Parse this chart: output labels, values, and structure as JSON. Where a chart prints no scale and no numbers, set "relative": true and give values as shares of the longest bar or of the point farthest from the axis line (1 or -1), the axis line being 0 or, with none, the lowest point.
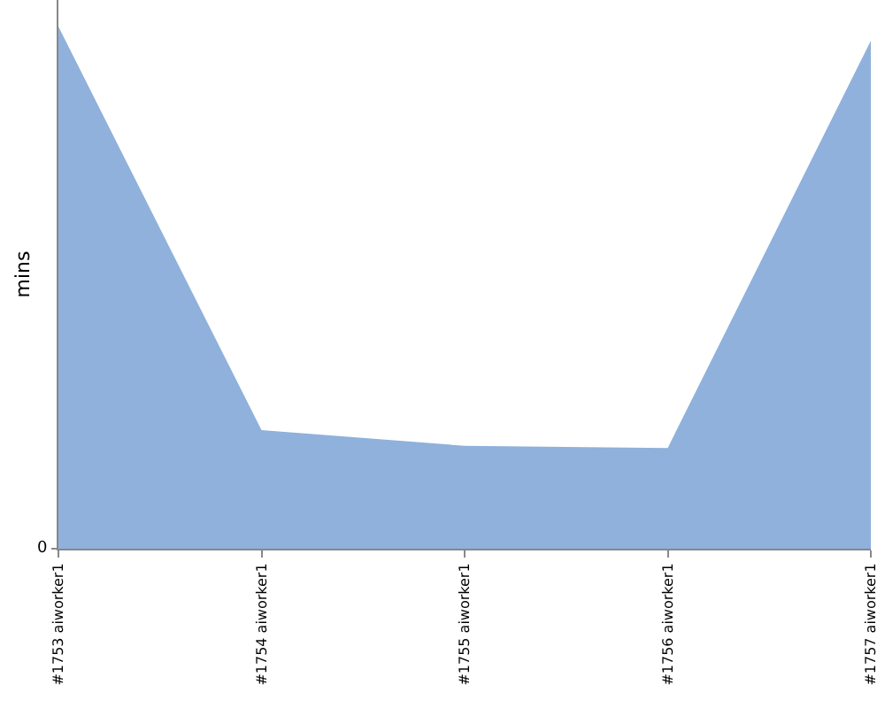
{
  "chart_data": {
    "type": "area",
    "relative": true,
    "ylabel": "mins",
    "categories": [
      "#1753 aiworker1",
      "#1754 aiworker1",
      "#1755 aiworker1",
      "#1756 aiworker1",
      "#1757 aiworker1"
    ],
    "series": [
      {
        "color": "#8fb1db",
        "values": [
          1,
          0.227,
          0.197,
          0.193,
          0.973
        ]
      }
    ],
    "annotations": [
      "0"
    ]
  }
}
